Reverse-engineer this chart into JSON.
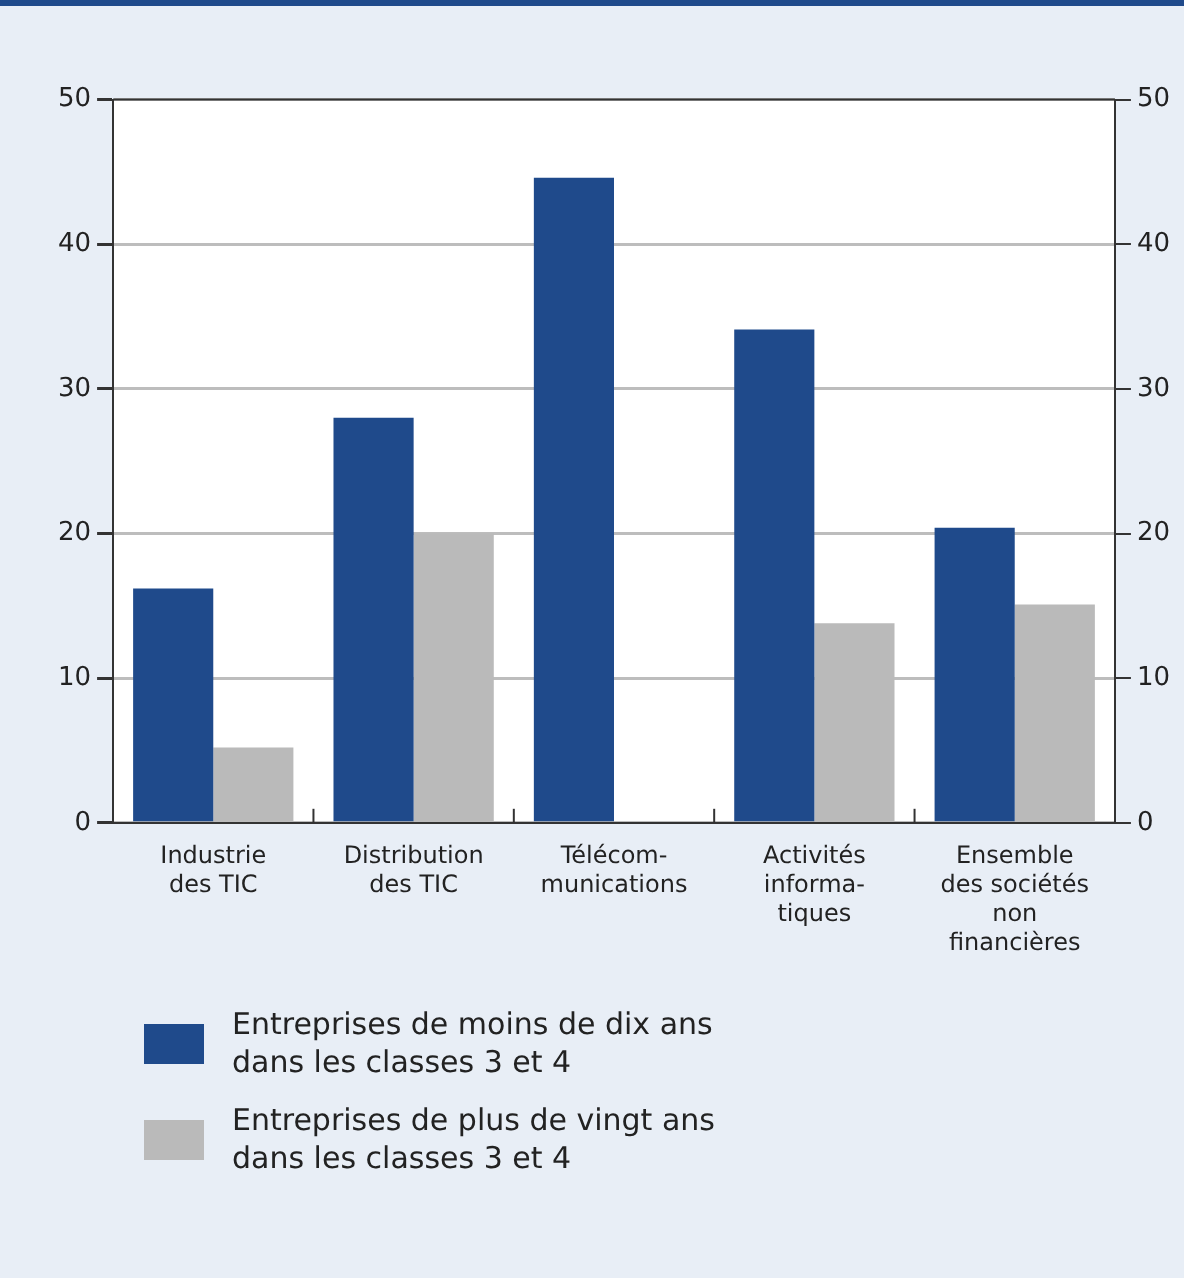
{
  "chart_data": {
    "type": "bar",
    "categories": [
      "Industrie\ndes TIC",
      "Distribution\ndes TIC",
      "Télécom-\nmunications",
      "Activités\ninforma-\ntiques",
      "Ensemble\ndes sociétés\nnon\nfinancières"
    ],
    "series": [
      {
        "name": "Entreprises de moins de dix ans dans les classes 3 et 4",
        "color": "#1f4a8b",
        "values": [
          16.2,
          28,
          44.6,
          34.1,
          20.4
        ]
      },
      {
        "name": "Entreprises de plus de vingt ans dans les classes 3 et 4",
        "color": "#bababa",
        "values": [
          5.2,
          20,
          null,
          13.8,
          15.1
        ]
      }
    ],
    "ylim": [
      0,
      50
    ],
    "yticks": [
      0,
      10,
      20,
      30,
      40,
      50
    ],
    "y2lim": [
      0,
      50
    ],
    "y2ticks": [
      0,
      10,
      20,
      30,
      40,
      50
    ],
    "grid": "y",
    "legend": "bottom"
  }
}
